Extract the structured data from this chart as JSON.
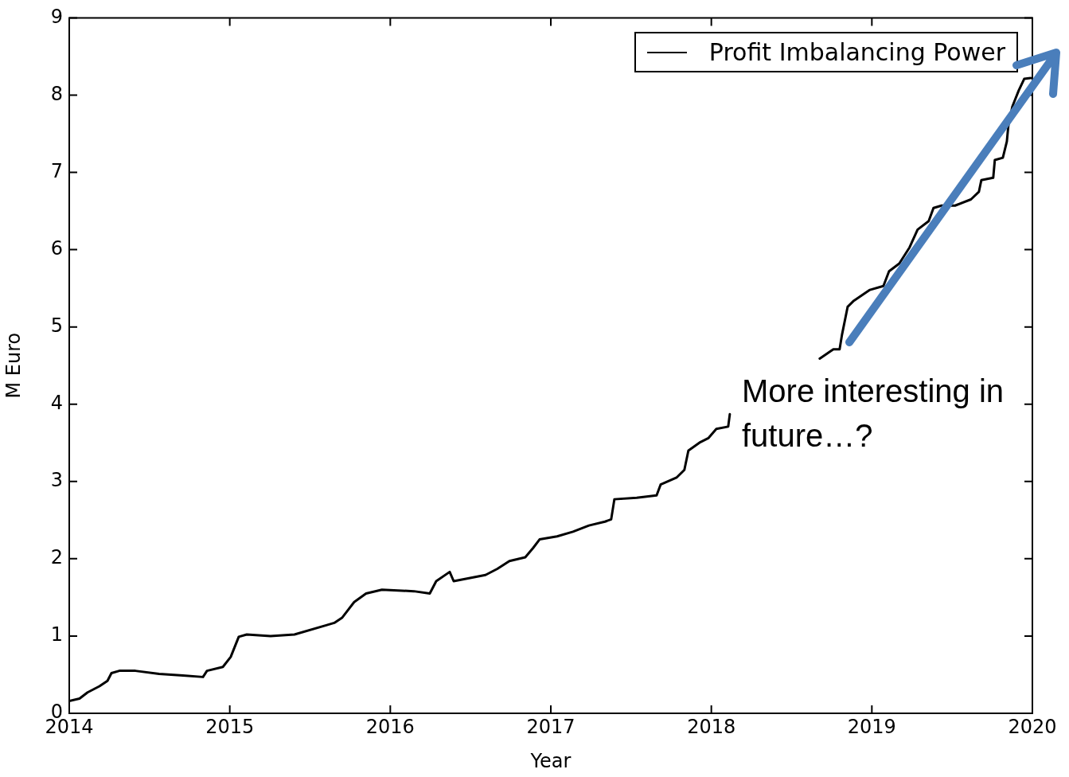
{
  "chart_data": {
    "type": "line",
    "xlabel": "Year",
    "ylabel": "M Euro",
    "x": [
      2014.0,
      2014.064,
      2014.114,
      2014.188,
      2014.238,
      2014.263,
      2014.312,
      2014.412,
      2014.56,
      2014.709,
      2014.833,
      2014.858,
      2014.957,
      2015.006,
      2015.056,
      2015.106,
      2015.254,
      2015.403,
      2015.601,
      2015.651,
      2015.701,
      2015.775,
      2015.849,
      2015.948,
      2016.147,
      2016.246,
      2016.286,
      2016.37,
      2016.395,
      2016.593,
      2016.667,
      2016.742,
      2016.841,
      2016.89,
      2016.93,
      2017.039,
      2017.138,
      2017.237,
      2017.337,
      2017.376,
      2017.396,
      2017.535,
      2017.659,
      2017.684,
      2017.783,
      2017.832,
      2017.857,
      2017.932,
      2017.981,
      2018.031,
      2018.105,
      2018.115,
      2018.4,
      2018.675,
      2018.76,
      2018.799,
      2018.814,
      2018.849,
      2018.888,
      2018.988,
      2019.072,
      2019.107,
      2019.171,
      2019.235,
      2019.285,
      2019.354,
      2019.384,
      2019.434,
      2019.518,
      2019.617,
      2019.667,
      2019.682,
      2019.756,
      2019.766,
      2019.816,
      2019.841,
      2019.85,
      2019.875,
      2019.915,
      2019.949,
      2019.989
    ],
    "series": [
      {
        "name": "Profit Imbalancing Power",
        "color": "#000000",
        "values": [
          0.16,
          0.19,
          0.27,
          0.35,
          0.42,
          0.52,
          0.55,
          0.55,
          0.51,
          0.49,
          0.47,
          0.55,
          0.6,
          0.73,
          0.99,
          1.02,
          1.0,
          1.02,
          1.14,
          1.17,
          1.24,
          1.44,
          1.55,
          1.6,
          1.58,
          1.55,
          1.71,
          1.83,
          1.71,
          1.79,
          1.87,
          1.97,
          2.02,
          2.14,
          2.25,
          2.29,
          2.35,
          2.43,
          2.48,
          2.51,
          2.77,
          2.79,
          2.82,
          2.96,
          3.05,
          3.15,
          3.4,
          3.51,
          3.56,
          3.68,
          3.71,
          3.87,
          null,
          4.59,
          4.71,
          4.71,
          4.9,
          5.26,
          5.34,
          5.48,
          5.53,
          5.72,
          5.82,
          6.03,
          6.26,
          6.37,
          6.54,
          6.57,
          6.57,
          6.65,
          6.75,
          6.9,
          6.93,
          7.16,
          7.19,
          7.4,
          7.6,
          7.85,
          8.06,
          8.21,
          8.22
        ]
      }
    ],
    "xlim": [
      2014,
      2020
    ],
    "xticks": [
      2014,
      2015,
      2016,
      2017,
      2018,
      2019,
      2020
    ],
    "ylim": [
      0,
      9
    ],
    "yticks": [
      0,
      1,
      2,
      3,
      4,
      5,
      6,
      7,
      8,
      9
    ],
    "grid": false,
    "legend": "top right",
    "marker": "none",
    "line_style": "solid",
    "annotations": [
      "More interesting in future…?"
    ]
  }
}
